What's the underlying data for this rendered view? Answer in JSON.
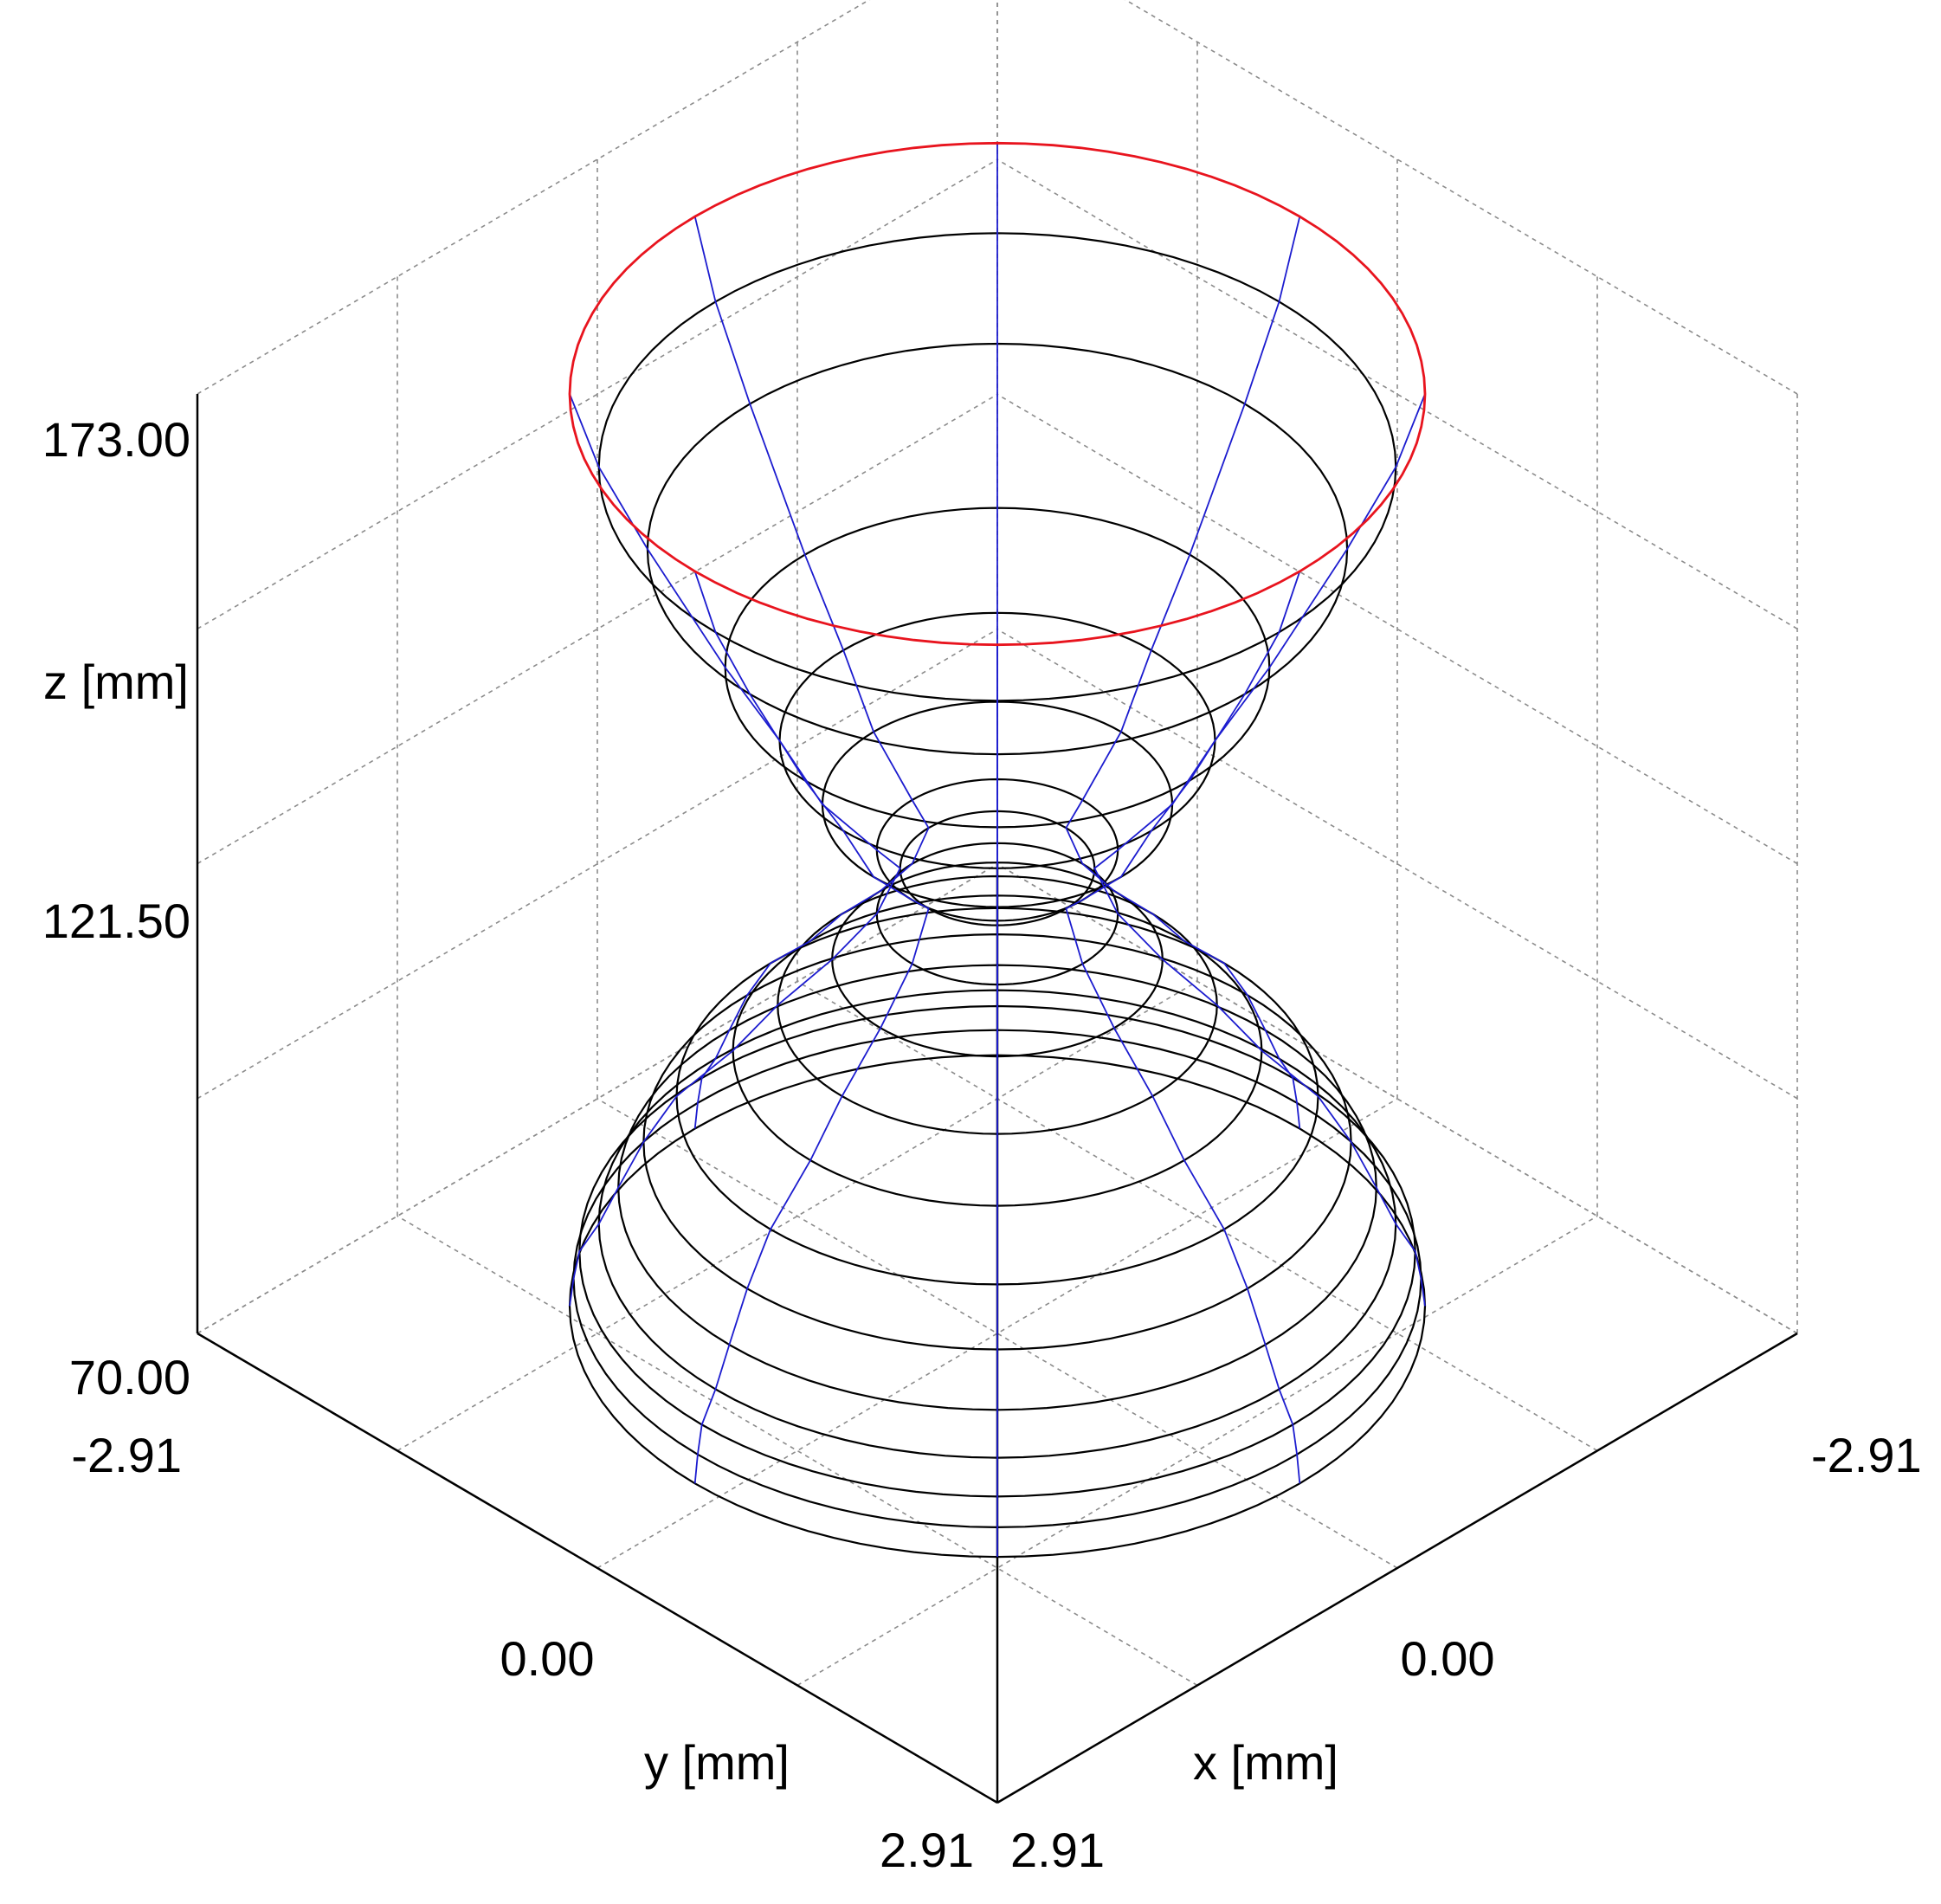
{
  "chart_data": {
    "type": "3d-wireframe",
    "xlabel": "x [mm]",
    "ylabel": "y [mm]",
    "zlabel": "z [mm]",
    "xlim": [
      -2.91,
      2.91
    ],
    "ylim": [
      -2.91,
      2.91
    ],
    "zlim": [
      70.0,
      173.0
    ],
    "x_ticks": [
      "-2.91",
      "0.00",
      "2.91"
    ],
    "y_ticks": [
      "-2.91",
      "0.00",
      "2.91"
    ],
    "z_ticks": [
      "70.00",
      "121.50",
      "173.00"
    ],
    "grid": true,
    "colors": {
      "top_ring": "#e8141e",
      "rings": "#000000",
      "meridians": "#1c1ccf",
      "grid": "#8c8c8c",
      "axes": "#000000"
    },
    "top_ring": {
      "z": 173.0,
      "radius": 2.2
    },
    "rings": [
      {
        "z": 165.0,
        "radius": 2.05
      },
      {
        "z": 156.0,
        "radius": 1.8
      },
      {
        "z": 143.0,
        "radius": 1.4
      },
      {
        "z": 135.0,
        "radius": 1.12
      },
      {
        "z": 128.0,
        "radius": 0.9
      },
      {
        "z": 123.0,
        "radius": 0.62
      },
      {
        "z": 121.0,
        "radius": 0.5
      },
      {
        "z": 116.0,
        "radius": 0.62
      },
      {
        "z": 111.0,
        "radius": 0.85
      },
      {
        "z": 106.0,
        "radius": 1.13
      },
      {
        "z": 101.0,
        "radius": 1.36
      },
      {
        "z": 96.0,
        "radius": 1.65
      },
      {
        "z": 91.0,
        "radius": 1.82
      },
      {
        "z": 86.0,
        "radius": 1.95
      },
      {
        "z": 82.0,
        "radius": 2.05
      },
      {
        "z": 79.0,
        "radius": 2.15
      },
      {
        "z": 76.0,
        "radius": 2.18
      },
      {
        "z": 73.0,
        "radius": 2.2
      }
    ],
    "meridian_angles_deg": [
      0,
      45,
      90,
      135,
      180,
      225,
      270,
      315
    ]
  }
}
